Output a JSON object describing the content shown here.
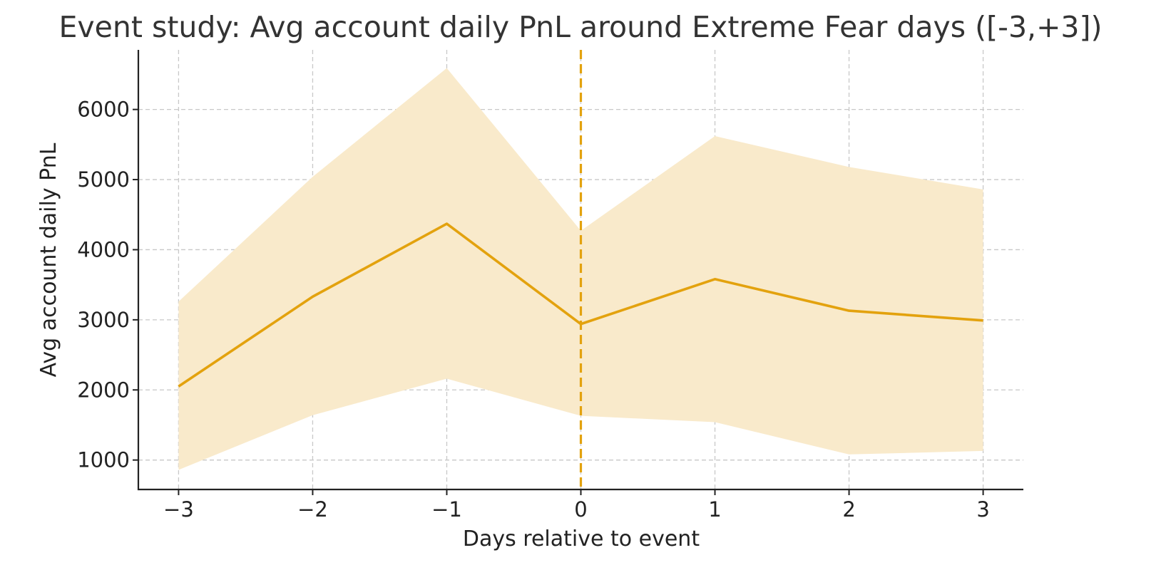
{
  "chart_data": {
    "type": "line",
    "title": "Event study: Avg account daily PnL around Extreme Fear days ([-3,+3])",
    "xlabel": "Days relative to event",
    "ylabel": "Avg account daily PnL",
    "x": [
      -3,
      -2,
      -1,
      0,
      1,
      2,
      3
    ],
    "x_tick_labels": [
      "−3",
      "−2",
      "−1",
      "0",
      "1",
      "2",
      "3"
    ],
    "y_ticks": [
      1000,
      2000,
      3000,
      4000,
      5000,
      6000
    ],
    "y_tick_labels": [
      "1000",
      "2000",
      "3000",
      "4000",
      "5000",
      "6000"
    ],
    "xlim": [
      -3.3,
      3.3
    ],
    "ylim": [
      580,
      6850
    ],
    "series": [
      {
        "values": [
          2050,
          3330,
          4370,
          2940,
          3580,
          3130,
          2990
        ],
        "band_upper": [
          3260,
          5040,
          6590,
          4270,
          5620,
          5180,
          4860
        ],
        "band_lower": [
          860,
          1640,
          2160,
          1630,
          1540,
          1080,
          1130
        ]
      }
    ],
    "event_marker": {
      "x": 0
    },
    "grid": true,
    "colors": {
      "line": "#E3A20E",
      "band": "#F9EACB",
      "event_line": "#E3A20E"
    }
  }
}
